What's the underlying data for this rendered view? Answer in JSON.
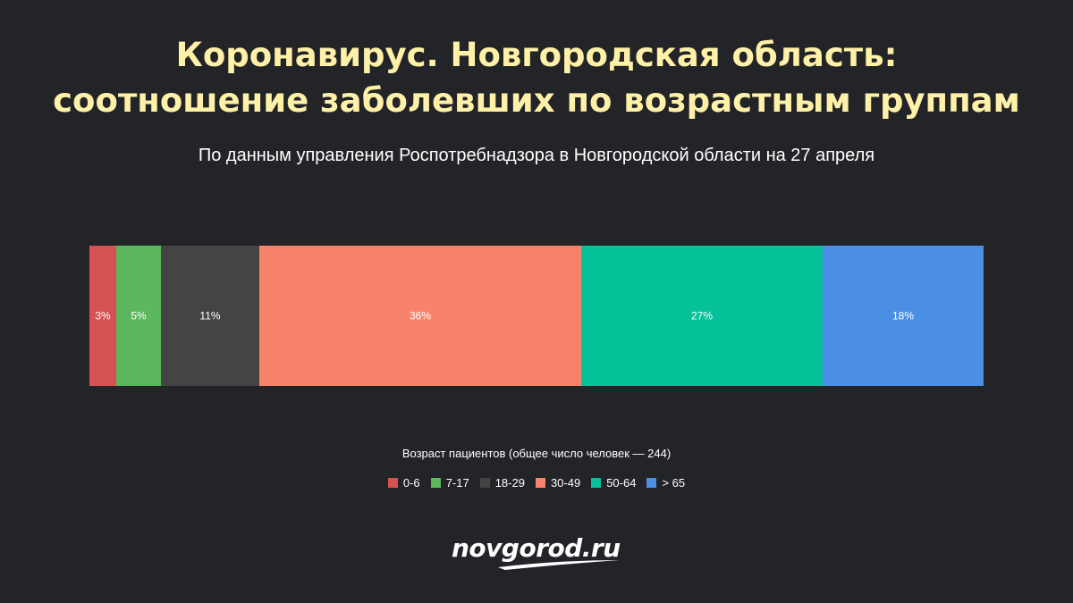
{
  "header": {
    "title_line1": "Коронавирус. Новгородская область:",
    "title_line2": "соотношение заболевших по возрастным группам",
    "subtitle": "По данным управления Роспотребнадзора в Новгородской области на 27 апреля"
  },
  "chart_data": {
    "type": "bar",
    "orientation": "horizontal",
    "stacked": true,
    "normalized": "percent",
    "categories": [
      ""
    ],
    "series": [
      {
        "name": "0-6",
        "values": [
          3
        ],
        "label": "3%",
        "color": "#d65252"
      },
      {
        "name": "7-17",
        "values": [
          5
        ],
        "label": "5%",
        "color": "#5cb85c"
      },
      {
        "name": "18-29",
        "values": [
          11
        ],
        "label": "11%",
        "color": "#444444"
      },
      {
        "name": "30-49",
        "values": [
          36
        ],
        "label": "36%",
        "color": "#f9836a"
      },
      {
        "name": "50-64",
        "values": [
          27
        ],
        "label": "27%",
        "color": "#05c29a"
      },
      {
        "name": "> 65",
        "values": [
          18
        ],
        "label": "18%",
        "color": "#4a8fe3"
      }
    ],
    "xlim": [
      0,
      100
    ],
    "grid": false,
    "legend_title": "Возраст пациентов (общее число человек — 244)",
    "legend_position": "bottom"
  },
  "brand": {
    "logo_text": "novgorod.ru"
  },
  "colors": {
    "background": "#222427",
    "title": "#fff1a8",
    "text": "#ffffff"
  }
}
